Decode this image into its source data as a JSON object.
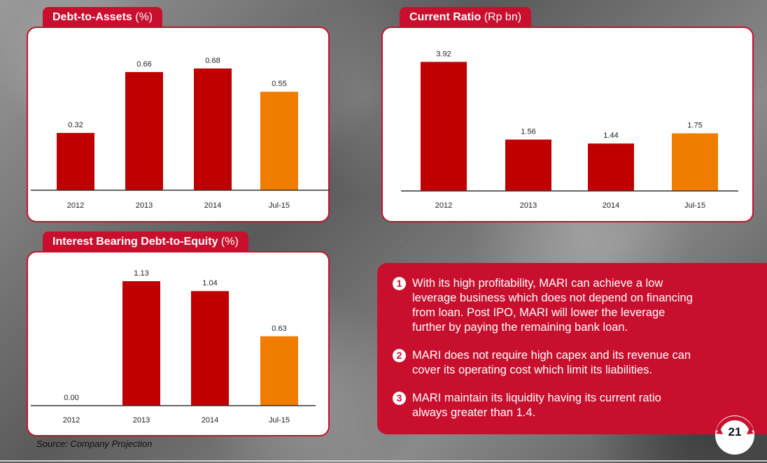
{
  "colors": {
    "red": "#c8102e",
    "bar_red": "#c00000",
    "bar_orange": "#f07c00"
  },
  "panels": [
    {
      "title_bold": "Debt-to-Assets",
      "title_unit": "(%)"
    },
    {
      "title_bold": "Current Ratio",
      "title_unit": "(Rp bn)"
    },
    {
      "title_bold": "Interest Bearing Debt-to-Equity",
      "title_unit": "(%)"
    }
  ],
  "chart_data": [
    {
      "type": "bar",
      "title": "Debt-to-Assets (%)",
      "categories": [
        "2012",
        "2013",
        "2014",
        "Jul-15"
      ],
      "values": [
        0.32,
        0.66,
        0.68,
        0.55
      ],
      "labels": [
        "0.32",
        "0.66",
        "0.68",
        "0.55"
      ],
      "highlight": "Jul-15",
      "ylim": [
        0,
        0.75
      ],
      "grid": false
    },
    {
      "type": "bar",
      "title": "Current Ratio (Rp bn)",
      "categories": [
        "2012",
        "2013",
        "2014",
        "Jul-15"
      ],
      "values": [
        3.92,
        1.56,
        1.44,
        1.75
      ],
      "labels": [
        "3.92",
        "1.56",
        "1.44",
        "1.75"
      ],
      "highlight": "Jul-15",
      "ylim": [
        0,
        4.1
      ],
      "grid": false
    },
    {
      "type": "bar",
      "title": "Interest Bearing Debt-to-Equity (%)",
      "categories": [
        "2012",
        "2013",
        "2014",
        "Jul-15"
      ],
      "values": [
        0.0,
        1.13,
        1.04,
        0.63
      ],
      "labels": [
        "0.00",
        "1.13",
        "1.04",
        "0.63"
      ],
      "highlight": "Jul-15",
      "ylim": [
        0,
        1.2
      ],
      "grid": false
    }
  ],
  "notes": [
    {
      "num": "1",
      "text": "With its high profitability, MARI can achieve a low leverage business which does not depend on financing from loan. Post IPO, MARI will lower the leverage further by paying the remaining bank loan."
    },
    {
      "num": "2",
      "text": "MARI does not require high capex and its revenue can cover its operating cost which limit its liabilities."
    },
    {
      "num": "3",
      "text": "MARI maintain its liquidity having its current ratio always greater than 1.4."
    }
  ],
  "source": "Source: Company Projection",
  "page_number": "21"
}
